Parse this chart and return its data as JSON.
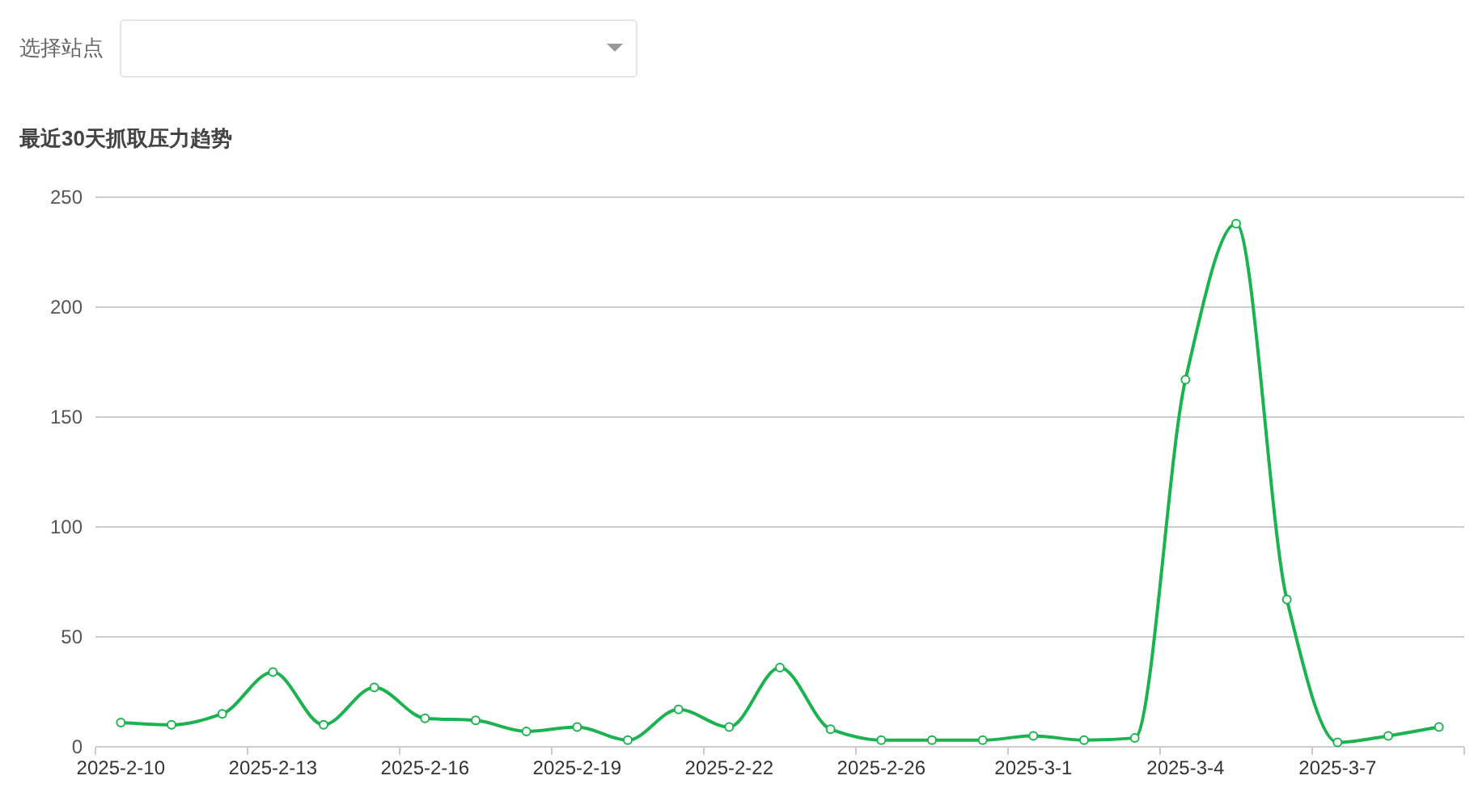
{
  "chart_data": {
    "type": "line",
    "title": "最近30天抓取压力趋势",
    "annotations": [
      "选择站点"
    ],
    "categories": [
      "2025-2-10",
      null,
      null,
      "2025-2-13",
      null,
      null,
      "2025-2-16",
      null,
      null,
      "2025-2-19",
      null,
      null,
      "2025-2-22",
      null,
      null,
      "2025-2-26",
      null,
      null,
      "2025-3-1",
      null,
      null,
      "2025-3-4",
      null,
      null,
      "2025-3-7",
      null,
      null
    ],
    "series": [
      {
        "color": "#1bb34f",
        "values": [
          11,
          10,
          15,
          34,
          10,
          27,
          13,
          12,
          7,
          9,
          3,
          17,
          9,
          36,
          8,
          3,
          3,
          3,
          5,
          3,
          4,
          167,
          238,
          67,
          2,
          5,
          9
        ]
      }
    ],
    "ylim": [
      0,
      250
    ],
    "yticks": [
      0,
      50,
      100,
      150,
      200,
      250
    ],
    "grid": "y",
    "marker": "circle",
    "line_style": "solid"
  }
}
